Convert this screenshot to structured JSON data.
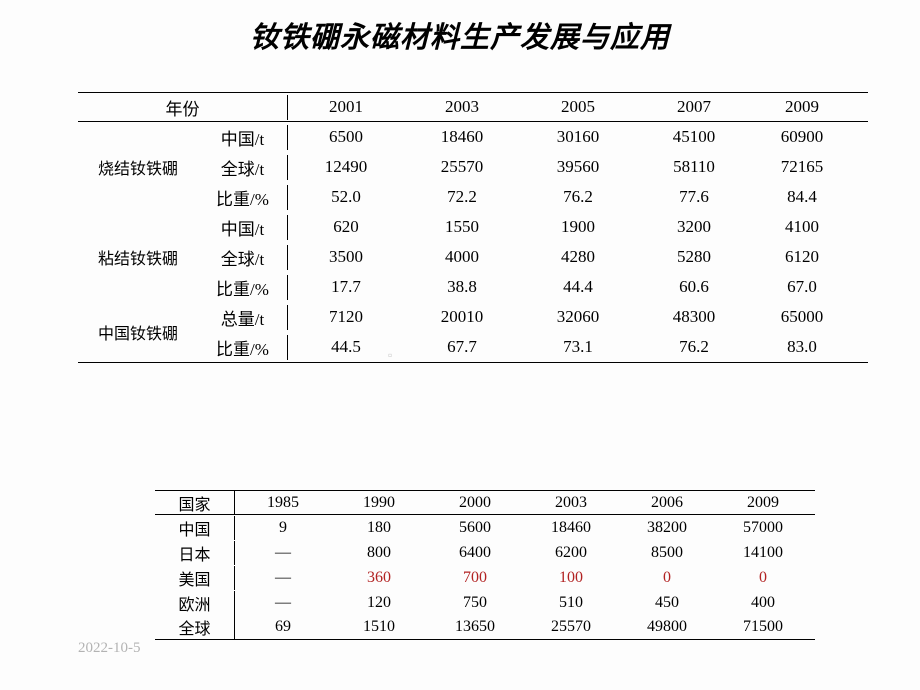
{
  "title": "钕铁硼永磁材料生产发展与应用",
  "footer_date": "2022-10-5",
  "watermark_glyph": "▫",
  "table1": {
    "year_header": "年份",
    "years": [
      "2001",
      "2003",
      "2005",
      "2007",
      "2009"
    ],
    "groups": [
      {
        "name": "烧结钕铁硼",
        "rows": [
          {
            "label": "中国/t",
            "vals": [
              "6500",
              "18460",
              "30160",
              "45100",
              "60900"
            ]
          },
          {
            "label": "全球/t",
            "vals": [
              "12490",
              "25570",
              "39560",
              "58110",
              "72165"
            ]
          },
          {
            "label": "比重/%",
            "vals": [
              "52.0",
              "72.2",
              "76.2",
              "77.6",
              "84.4"
            ]
          }
        ]
      },
      {
        "name": "粘结钕铁硼",
        "rows": [
          {
            "label": "中国/t",
            "vals": [
              "620",
              "1550",
              "1900",
              "3200",
              "4100"
            ]
          },
          {
            "label": "全球/t",
            "vals": [
              "3500",
              "4000",
              "4280",
              "5280",
              "6120"
            ]
          },
          {
            "label": "比重/%",
            "vals": [
              "17.7",
              "38.8",
              "44.4",
              "60.6",
              "67.0"
            ]
          }
        ]
      },
      {
        "name": "中国钕铁硼",
        "rows": [
          {
            "label": "总量/t",
            "vals": [
              "7120",
              "20010",
              "32060",
              "48300",
              "65000"
            ]
          },
          {
            "label": "比重/%",
            "vals": [
              "44.5",
              "67.7",
              "73.1",
              "76.2",
              "83.0"
            ]
          }
        ]
      }
    ]
  },
  "table2": {
    "country_header": "国家",
    "years": [
      "1985",
      "1990",
      "2000",
      "2003",
      "2006",
      "2009"
    ],
    "rows": [
      {
        "name": "中国",
        "vals": [
          "9",
          "180",
          "5600",
          "18460",
          "38200",
          "57000"
        ],
        "red": [
          false,
          false,
          false,
          false,
          false,
          false
        ]
      },
      {
        "name": "日本",
        "vals": [
          "—",
          "800",
          "6400",
          "6200",
          "8500",
          "14100"
        ],
        "red": [
          false,
          false,
          false,
          false,
          false,
          false
        ]
      },
      {
        "name": "美国",
        "vals": [
          "—",
          "360",
          "700",
          "100",
          "0",
          "0"
        ],
        "red": [
          false,
          true,
          true,
          true,
          true,
          true
        ]
      },
      {
        "name": "欧洲",
        "vals": [
          "—",
          "120",
          "750",
          "510",
          "450",
          "400"
        ],
        "red": [
          false,
          false,
          false,
          false,
          false,
          false
        ]
      },
      {
        "name": "全球",
        "vals": [
          "69",
          "1510",
          "13650",
          "25570",
          "49800",
          "71500"
        ],
        "red": [
          false,
          false,
          false,
          false,
          false,
          false
        ]
      }
    ]
  },
  "colors": {
    "text": "#000000",
    "red": "#b22222",
    "border": "#000000",
    "footer": "#b3b3b3",
    "background": "#fdfdfd"
  }
}
